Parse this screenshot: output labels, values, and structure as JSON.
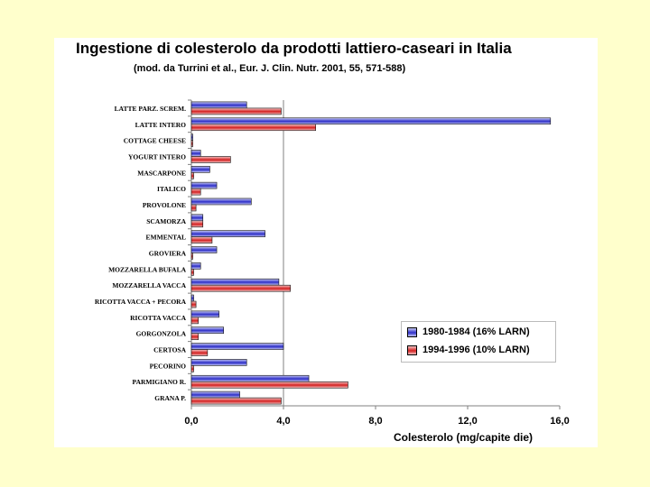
{
  "chart_data": {
    "type": "bar",
    "orientation": "horizontal",
    "title": "Ingestione di colesterolo da prodotti lattiero-caseari in Italia",
    "subtitle": "(mod. da Turrini et al., Eur. J. Clin. Nutr. 2001, 55, 571-588)",
    "xlabel": "Colesterolo (mg/capite die)",
    "ylabel": "",
    "xlim": [
      0,
      16
    ],
    "xticks": [
      "0,0",
      "4,0",
      "8,0",
      "12,0",
      "16,0"
    ],
    "xtick_values": [
      0,
      4,
      8,
      12,
      16
    ],
    "gridlines_at": [
      4
    ],
    "legend_position": "bottom-right",
    "categories": [
      "LATTE PARZ. SCREM.",
      "LATTE INTERO",
      "COTTAGE CHEESE",
      "YOGURT INTERO",
      "MASCARPONE",
      "ITALICO",
      "PROVOLONE",
      "SCAMORZA",
      "EMMENTAL",
      "GROVIERA",
      "MOZZARELLA BUFALA",
      "MOZZARELLA VACCA",
      "RICOTTA VACCA + PECORA",
      "RICOTTA VACCA",
      "GORGONZOLA",
      "CERTOSA",
      "PECORINO",
      "PARMIGIANO R.",
      "GRANA P."
    ],
    "series": [
      {
        "name": "1980-1984 (16% LARN)",
        "color": "#2d2ec8",
        "values": [
          2.4,
          15.6,
          0.05,
          0.4,
          0.8,
          1.1,
          2.6,
          0.5,
          3.2,
          1.1,
          0.4,
          3.8,
          0.1,
          1.2,
          1.4,
          4.0,
          2.4,
          5.1,
          2.1
        ]
      },
      {
        "name": "1994-1996 (10% LARN)",
        "color": "#d42020",
        "values": [
          3.9,
          5.4,
          0.0,
          1.7,
          0.1,
          0.4,
          0.2,
          0.5,
          0.9,
          0.05,
          0.1,
          4.3,
          0.2,
          0.3,
          0.3,
          0.7,
          0.1,
          6.8,
          3.9
        ]
      }
    ]
  }
}
